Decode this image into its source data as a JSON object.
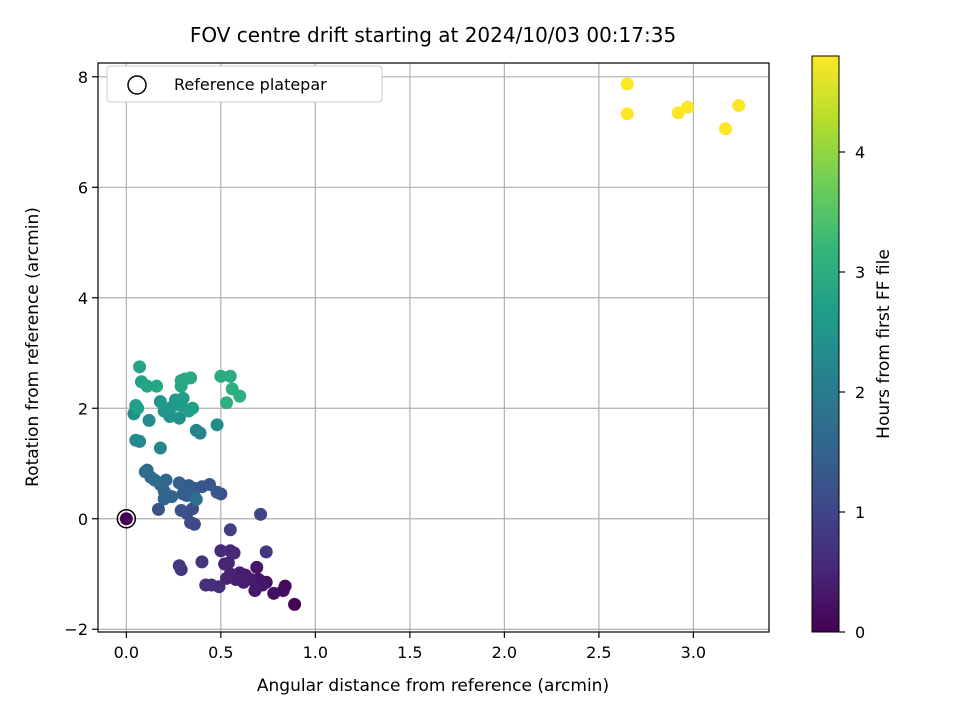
{
  "chart_data": {
    "type": "scatter",
    "title": "FOV centre drift starting at 2024/10/03 00:17:35",
    "xlabel": "Angular distance from reference (arcmin)",
    "ylabel": "Rotation from reference (arcmin)",
    "xlim": [
      -0.15,
      3.4
    ],
    "ylim": [
      -2.05,
      8.25
    ],
    "xticks": [
      0.0,
      0.5,
      1.0,
      1.5,
      2.0,
      2.5,
      3.0
    ],
    "xtick_labels": [
      "0.0",
      "0.5",
      "1.0",
      "1.5",
      "2.0",
      "2.5",
      "3.0"
    ],
    "yticks": [
      -2,
      0,
      2,
      4,
      6,
      8
    ],
    "ytick_labels": [
      "−2",
      "0",
      "2",
      "4",
      "6",
      "8"
    ],
    "grid": true,
    "legend": {
      "placement": "top-left",
      "entries": [
        "Reference platepar"
      ]
    },
    "reference_point": {
      "x": 0.0,
      "y": 0.0,
      "hours": 0.0
    },
    "colorbar": {
      "label": "Hours from first FF file",
      "min": 0,
      "max": 4.8,
      "ticks": [
        0,
        1,
        2,
        3,
        4
      ],
      "tick_labels": [
        "0",
        "1",
        "2",
        "3",
        "4"
      ],
      "colormap": "viridis",
      "stops": [
        "#440154",
        "#482878",
        "#3e4a89",
        "#31688e",
        "#26828e",
        "#1f9e89",
        "#35b779",
        "#6ece58",
        "#b5de2b",
        "#fde725"
      ]
    },
    "points": [
      {
        "x": 0.89,
        "y": -1.55,
        "h": 0.05
      },
      {
        "x": 0.84,
        "y": -1.22,
        "h": 0.1
      },
      {
        "x": 0.83,
        "y": -1.3,
        "h": 0.15
      },
      {
        "x": 0.78,
        "y": -1.35,
        "h": 0.2
      },
      {
        "x": 0.74,
        "y": -1.15,
        "h": 0.22
      },
      {
        "x": 0.7,
        "y": -1.1,
        "h": 0.25
      },
      {
        "x": 0.69,
        "y": -0.88,
        "h": 0.28
      },
      {
        "x": 0.72,
        "y": -1.2,
        "h": 0.3
      },
      {
        "x": 0.68,
        "y": -1.3,
        "h": 0.32
      },
      {
        "x": 0.66,
        "y": -1.1,
        "h": 0.34
      },
      {
        "x": 0.63,
        "y": -1.02,
        "h": 0.36
      },
      {
        "x": 0.6,
        "y": -0.98,
        "h": 0.38
      },
      {
        "x": 0.62,
        "y": -1.15,
        "h": 0.4
      },
      {
        "x": 0.58,
        "y": -1.1,
        "h": 0.42
      },
      {
        "x": 0.55,
        "y": -1.0,
        "h": 0.44
      },
      {
        "x": 0.53,
        "y": -1.08,
        "h": 0.46
      },
      {
        "x": 0.52,
        "y": -0.82,
        "h": 0.48
      },
      {
        "x": 0.54,
        "y": -0.8,
        "h": 0.5
      },
      {
        "x": 0.57,
        "y": -0.62,
        "h": 0.52
      },
      {
        "x": 0.55,
        "y": -0.58,
        "h": 0.55
      },
      {
        "x": 0.5,
        "y": -0.58,
        "h": 0.58
      },
      {
        "x": 0.49,
        "y": -1.23,
        "h": 0.6
      },
      {
        "x": 0.45,
        "y": -1.2,
        "h": 0.62
      },
      {
        "x": 0.42,
        "y": -1.2,
        "h": 0.65
      },
      {
        "x": 0.4,
        "y": -0.78,
        "h": 0.7
      },
      {
        "x": 0.29,
        "y": -0.92,
        "h": 0.72
      },
      {
        "x": 0.28,
        "y": -0.85,
        "h": 0.75
      },
      {
        "x": 0.74,
        "y": -0.6,
        "h": 0.78
      },
      {
        "x": 0.55,
        "y": -0.2,
        "h": 0.9
      },
      {
        "x": 0.71,
        "y": 0.08,
        "h": 1.0
      },
      {
        "x": 0.36,
        "y": -0.1,
        "h": 1.05
      },
      {
        "x": 0.34,
        "y": -0.07,
        "h": 1.1
      },
      {
        "x": 0.32,
        "y": 0.1,
        "h": 1.15
      },
      {
        "x": 0.35,
        "y": 0.18,
        "h": 1.18
      },
      {
        "x": 0.29,
        "y": 0.15,
        "h": 1.2
      },
      {
        "x": 0.17,
        "y": 0.17,
        "h": 1.22
      },
      {
        "x": 0.5,
        "y": 0.45,
        "h": 1.25
      },
      {
        "x": 0.48,
        "y": 0.48,
        "h": 1.28
      },
      {
        "x": 0.44,
        "y": 0.62,
        "h": 1.3
      },
      {
        "x": 0.4,
        "y": 0.58,
        "h": 1.32
      },
      {
        "x": 0.36,
        "y": 0.55,
        "h": 1.35
      },
      {
        "x": 0.33,
        "y": 0.6,
        "h": 1.38
      },
      {
        "x": 0.36,
        "y": 0.4,
        "h": 1.4
      },
      {
        "x": 0.32,
        "y": 0.42,
        "h": 1.42
      },
      {
        "x": 0.3,
        "y": 0.45,
        "h": 1.45
      },
      {
        "x": 0.28,
        "y": 0.65,
        "h": 1.48
      },
      {
        "x": 0.24,
        "y": 0.4,
        "h": 1.5
      },
      {
        "x": 0.22,
        "y": 0.42,
        "h": 1.52
      },
      {
        "x": 0.2,
        "y": 0.36,
        "h": 1.55
      },
      {
        "x": 0.2,
        "y": 0.5,
        "h": 1.57
      },
      {
        "x": 0.18,
        "y": 0.62,
        "h": 1.6
      },
      {
        "x": 0.21,
        "y": 0.7,
        "h": 1.62
      },
      {
        "x": 0.15,
        "y": 0.7,
        "h": 1.65
      },
      {
        "x": 0.13,
        "y": 0.75,
        "h": 1.68
      },
      {
        "x": 0.11,
        "y": 0.88,
        "h": 1.7
      },
      {
        "x": 0.1,
        "y": 0.85,
        "h": 1.72
      },
      {
        "x": 0.37,
        "y": 0.35,
        "h": 1.75
      },
      {
        "x": 0.39,
        "y": 1.55,
        "h": 2.1
      },
      {
        "x": 0.37,
        "y": 1.6,
        "h": 2.15
      },
      {
        "x": 0.18,
        "y": 1.28,
        "h": 2.2
      },
      {
        "x": 0.07,
        "y": 1.4,
        "h": 2.25
      },
      {
        "x": 0.05,
        "y": 1.42,
        "h": 2.28
      },
      {
        "x": 0.12,
        "y": 1.78,
        "h": 2.32
      },
      {
        "x": 0.04,
        "y": 1.9,
        "h": 2.35
      },
      {
        "x": 0.48,
        "y": 1.7,
        "h": 2.38
      },
      {
        "x": 0.28,
        "y": 1.82,
        "h": 2.4
      },
      {
        "x": 0.23,
        "y": 1.85,
        "h": 2.45
      },
      {
        "x": 0.2,
        "y": 1.95,
        "h": 2.5
      },
      {
        "x": 0.18,
        "y": 2.12,
        "h": 2.52
      },
      {
        "x": 0.24,
        "y": 2.02,
        "h": 2.55
      },
      {
        "x": 0.26,
        "y": 2.15,
        "h": 2.57
      },
      {
        "x": 0.29,
        "y": 2.05,
        "h": 2.6
      },
      {
        "x": 0.3,
        "y": 2.18,
        "h": 2.62
      },
      {
        "x": 0.33,
        "y": 1.95,
        "h": 2.65
      },
      {
        "x": 0.35,
        "y": 2.0,
        "h": 2.68
      },
      {
        "x": 0.05,
        "y": 2.05,
        "h": 2.7
      },
      {
        "x": 0.06,
        "y": 2.0,
        "h": 2.72
      },
      {
        "x": 0.08,
        "y": 2.48,
        "h": 2.75
      },
      {
        "x": 0.11,
        "y": 2.4,
        "h": 2.78
      },
      {
        "x": 0.07,
        "y": 2.75,
        "h": 2.8
      },
      {
        "x": 0.16,
        "y": 2.4,
        "h": 2.82
      },
      {
        "x": 0.29,
        "y": 2.4,
        "h": 2.85
      },
      {
        "x": 0.29,
        "y": 2.5,
        "h": 2.88
      },
      {
        "x": 0.31,
        "y": 2.53,
        "h": 2.9
      },
      {
        "x": 0.34,
        "y": 2.55,
        "h": 2.92
      },
      {
        "x": 0.5,
        "y": 2.58,
        "h": 2.95
      },
      {
        "x": 0.55,
        "y": 2.58,
        "h": 2.97
      },
      {
        "x": 0.56,
        "y": 2.35,
        "h": 3.0
      },
      {
        "x": 0.6,
        "y": 2.22,
        "h": 3.02
      },
      {
        "x": 0.53,
        "y": 2.1,
        "h": 3.05
      },
      {
        "x": 2.65,
        "y": 7.87,
        "h": 4.8
      },
      {
        "x": 2.65,
        "y": 7.33,
        "h": 4.8
      },
      {
        "x": 2.92,
        "y": 7.35,
        "h": 4.8
      },
      {
        "x": 2.97,
        "y": 7.45,
        "h": 4.8
      },
      {
        "x": 3.17,
        "y": 7.06,
        "h": 4.8
      },
      {
        "x": 3.24,
        "y": 7.48,
        "h": 4.8
      }
    ]
  }
}
